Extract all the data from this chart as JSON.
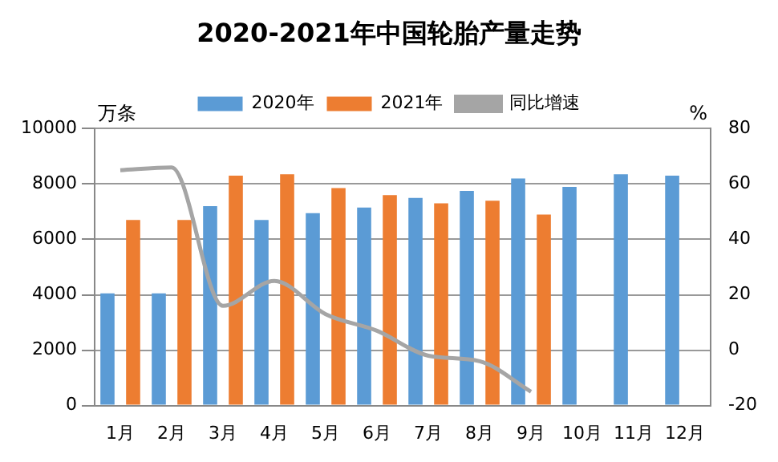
{
  "chart_data": {
    "type": "bar",
    "title": "2020-2021年中国轮胎产量走势",
    "ylabel": "万条",
    "y2label": "%",
    "categories": [
      "1月",
      "2月",
      "3月",
      "4月",
      "5月",
      "6月",
      "7月",
      "8月",
      "9月",
      "10月",
      "11月",
      "12月"
    ],
    "series": [
      {
        "name": "2020年",
        "color": "#5b9bd5",
        "values": [
          4050,
          4050,
          7200,
          6700,
          6950,
          7150,
          7500,
          7750,
          8200,
          7900,
          8350,
          8300
        ]
      },
      {
        "name": "2021年",
        "color": "#ed7d31",
        "values": [
          6700,
          6700,
          8300,
          8350,
          7850,
          7600,
          7300,
          7400,
          6900,
          null,
          null,
          null
        ]
      },
      {
        "name": "同比增速",
        "type": "line",
        "axis": "y2",
        "color": "#a5a5a5",
        "values": [
          65,
          66,
          16,
          25,
          13,
          7,
          -2,
          -4,
          -15,
          null,
          null,
          null
        ]
      }
    ],
    "ylim": [
      0,
      10000
    ],
    "yticks": [
      0,
      2000,
      4000,
      6000,
      8000,
      10000
    ],
    "y2lim": [
      -20,
      80
    ],
    "y2ticks": [
      -20,
      0,
      20,
      40,
      60,
      80
    ],
    "grid": "y",
    "legend": "top",
    "marker": "none"
  }
}
